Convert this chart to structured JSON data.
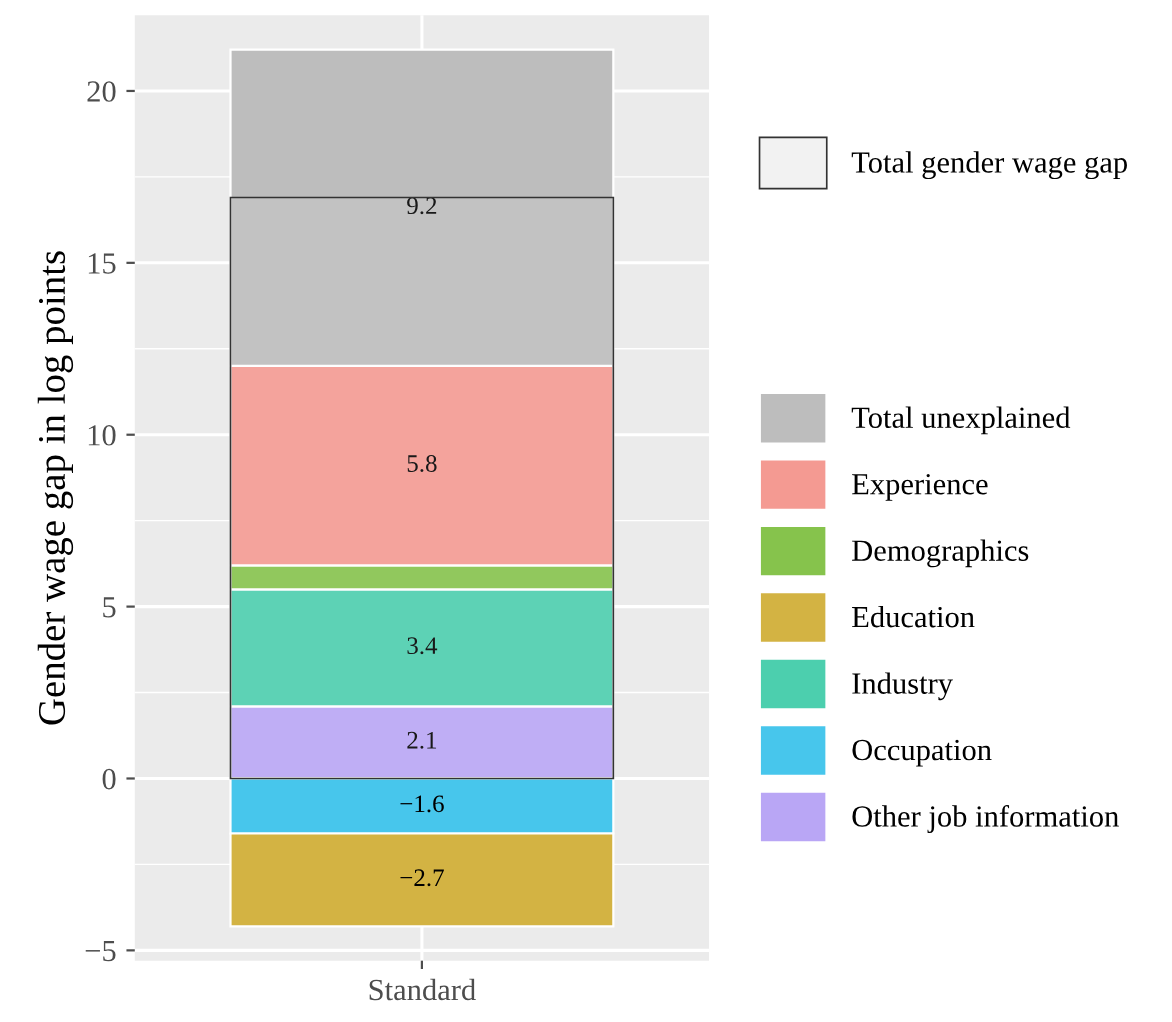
{
  "chart_data": [
    {
      "type": "bar",
      "stacked": true,
      "ylabel": "Gender wage gap in log points",
      "categories": [
        "Standard"
      ],
      "series": [
        {
          "name": "Other job information",
          "color": "#b9a6f5",
          "values": [
            2.1
          ],
          "value_labels": [
            "2.1"
          ]
        },
        {
          "name": "Occupation",
          "color": "#47c6ec",
          "values": [
            -1.6
          ],
          "value_labels": [
            "−1.6"
          ]
        },
        {
          "name": "Industry",
          "color": "#4ccfae",
          "values": [
            3.4
          ],
          "value_labels": [
            "3.4"
          ]
        },
        {
          "name": "Education",
          "color": "#d3b343",
          "values": [
            -2.7
          ],
          "value_labels": [
            "−2.7"
          ]
        },
        {
          "name": "Demographics",
          "color": "#86c34c",
          "values": [
            0.7
          ],
          "value_labels": [
            null
          ]
        },
        {
          "name": "Experience",
          "color": "#f49a92",
          "values": [
            5.8
          ],
          "value_labels": [
            "5.8"
          ]
        },
        {
          "name": "Total unexplained",
          "color": "#bdbdbd",
          "values": [
            9.2
          ],
          "value_labels": [
            "9.2"
          ]
        }
      ],
      "ylim": [
        -5.3,
        22.2
      ],
      "yticks": [
        -5,
        0,
        5,
        10,
        15,
        20
      ],
      "grid": true,
      "legend": "right"
    },
    {
      "type": "bar",
      "categories": [
        null
      ],
      "series": [
        {
          "name": "Total gender wage gap",
          "color": "#f2f2f2",
          "values": [
            16.9
          ]
        }
      ],
      "ylim": [
        -5.3,
        22.2
      ],
      "tick_labels": false,
      "legend": "right"
    }
  ]
}
